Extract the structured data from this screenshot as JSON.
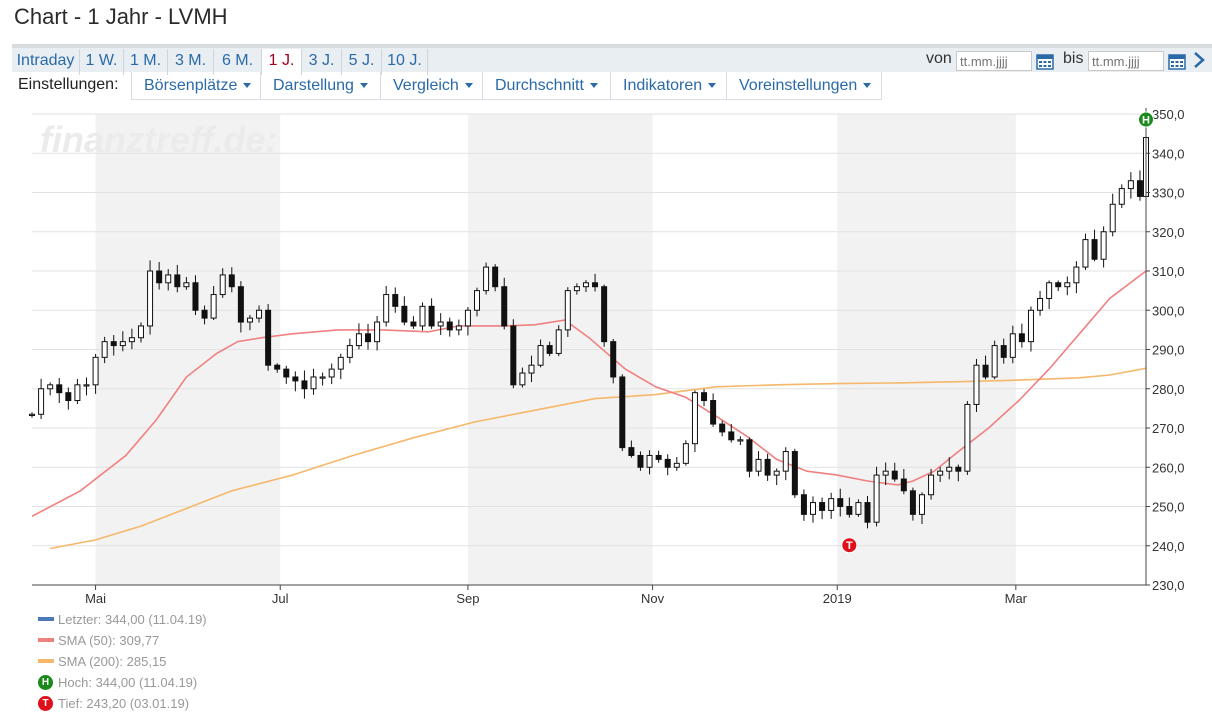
{
  "title": "Chart - 1 Jahr - LVMH",
  "range_tabs": [
    {
      "label": "Intraday",
      "active": false
    },
    {
      "label": "1 W.",
      "active": false
    },
    {
      "label": "1 M.",
      "active": false
    },
    {
      "label": "3 M.",
      "active": false
    },
    {
      "label": "6 M.",
      "active": false
    },
    {
      "label": "1 J.",
      "active": true
    },
    {
      "label": "3 J.",
      "active": false
    },
    {
      "label": "5 J.",
      "active": false
    },
    {
      "label": "10 J.",
      "active": false
    }
  ],
  "date_range": {
    "from_label": "von",
    "from_placeholder": "tt.mm.jjjj",
    "to_label": "bis",
    "to_placeholder": "tt.mm.jjjj"
  },
  "settings": {
    "label": "Einstellungen:",
    "menus": [
      "Börsenplätze",
      "Darstellung",
      "Vergleich",
      "Durchschnitt",
      "Indikatoren",
      "Voreinstellungen"
    ]
  },
  "watermark": "finanztreff.de:",
  "colors": {
    "accent": "#2a6aa8",
    "active_tab": "#a4001d",
    "sma50": "#f08080",
    "sma200": "#f5b86a",
    "last": "#4a7ab8",
    "high_badge": "#1a8a1a",
    "low_badge": "#e0101a"
  },
  "chart_data": {
    "type": "candlestick",
    "y_ticks": [
      "230,0",
      "240,0",
      "250,0",
      "260,0",
      "270,0",
      "280,0",
      "290,0",
      "300,0",
      "310,0",
      "320,0",
      "330,0",
      "340,0",
      "350,0"
    ],
    "ylim": [
      230,
      350
    ],
    "x_labels": [
      {
        "label": "Mai",
        "day": 15
      },
      {
        "label": "Jul",
        "day": 76
      },
      {
        "label": "Sep",
        "day": 138
      },
      {
        "label": "Nov",
        "day": 199
      },
      {
        "label": "2019",
        "day": 260
      },
      {
        "label": "Mar",
        "day": 319
      }
    ],
    "xlim": [
      -6,
      362
    ],
    "shaded_months": [
      [
        15,
        76
      ],
      [
        138,
        199
      ],
      [
        260,
        319
      ]
    ],
    "close_series": [
      [
        -6,
        273.5
      ],
      [
        -3,
        280
      ],
      [
        0,
        281
      ],
      [
        3,
        279
      ],
      [
        6,
        277
      ],
      [
        9,
        281
      ],
      [
        12,
        281
      ],
      [
        15,
        288
      ],
      [
        18,
        292
      ],
      [
        21,
        291
      ],
      [
        24,
        292
      ],
      [
        27,
        293
      ],
      [
        30,
        296
      ],
      [
        33,
        310
      ],
      [
        36,
        307
      ],
      [
        39,
        309
      ],
      [
        42,
        306
      ],
      [
        45,
        307
      ],
      [
        48,
        300
      ],
      [
        51,
        298
      ],
      [
        54,
        304
      ],
      [
        57,
        309
      ],
      [
        60,
        306
      ],
      [
        63,
        297
      ],
      [
        66,
        298
      ],
      [
        69,
        300
      ],
      [
        72,
        286
      ],
      [
        75,
        285
      ],
      [
        78,
        283
      ],
      [
        81,
        282
      ],
      [
        84,
        280
      ],
      [
        87,
        283
      ],
      [
        90,
        283
      ],
      [
        93,
        285
      ],
      [
        96,
        288
      ],
      [
        99,
        291
      ],
      [
        102,
        294
      ],
      [
        105,
        292
      ],
      [
        108,
        297
      ],
      [
        111,
        304
      ],
      [
        114,
        301
      ],
      [
        117,
        297
      ],
      [
        120,
        296
      ],
      [
        123,
        301
      ],
      [
        126,
        296
      ],
      [
        129,
        297
      ],
      [
        132,
        295
      ],
      [
        135,
        296
      ],
      [
        138,
        300
      ],
      [
        141,
        305
      ],
      [
        144,
        311
      ],
      [
        147,
        306
      ],
      [
        150,
        296
      ],
      [
        153,
        281
      ],
      [
        156,
        284
      ],
      [
        159,
        286
      ],
      [
        162,
        291
      ],
      [
        165,
        289
      ],
      [
        168,
        295
      ],
      [
        171,
        305
      ],
      [
        174,
        306
      ],
      [
        177,
        307
      ],
      [
        180,
        306
      ],
      [
        183,
        292
      ],
      [
        186,
        283
      ],
      [
        189,
        265
      ],
      [
        192,
        263
      ],
      [
        195,
        260
      ],
      [
        198,
        263
      ],
      [
        201,
        262
      ],
      [
        204,
        260
      ],
      [
        207,
        261
      ],
      [
        210,
        266
      ],
      [
        213,
        279
      ],
      [
        216,
        277
      ],
      [
        219,
        271
      ],
      [
        222,
        269
      ],
      [
        225,
        267
      ],
      [
        228,
        267
      ],
      [
        231,
        259
      ],
      [
        234,
        262
      ],
      [
        237,
        258
      ],
      [
        240,
        259
      ],
      [
        243,
        264
      ],
      [
        246,
        253
      ],
      [
        249,
        248
      ],
      [
        252,
        251
      ],
      [
        255,
        249
      ],
      [
        258,
        252
      ],
      [
        261,
        250
      ],
      [
        264,
        248
      ],
      [
        267,
        251
      ],
      [
        270,
        246
      ],
      [
        273,
        258
      ],
      [
        276,
        259
      ],
      [
        279,
        257
      ],
      [
        282,
        254
      ],
      [
        285,
        248
      ],
      [
        288,
        253
      ],
      [
        291,
        258
      ],
      [
        294,
        259
      ],
      [
        297,
        260
      ],
      [
        300,
        259
      ],
      [
        303,
        276
      ],
      [
        306,
        286
      ],
      [
        309,
        283
      ],
      [
        312,
        291
      ],
      [
        315,
        288
      ],
      [
        318,
        294
      ],
      [
        321,
        292
      ],
      [
        324,
        300
      ],
      [
        327,
        303
      ],
      [
        330,
        307
      ],
      [
        333,
        306
      ],
      [
        336,
        307
      ],
      [
        339,
        311
      ],
      [
        342,
        318
      ],
      [
        345,
        313
      ],
      [
        348,
        320
      ],
      [
        351,
        327
      ],
      [
        354,
        331
      ],
      [
        357,
        333
      ],
      [
        360,
        329
      ],
      [
        362,
        344
      ]
    ],
    "sma50": [
      [
        -6,
        247.5
      ],
      [
        10,
        254
      ],
      [
        25,
        263
      ],
      [
        35,
        272
      ],
      [
        45,
        283
      ],
      [
        55,
        289
      ],
      [
        62,
        292
      ],
      [
        70,
        293
      ],
      [
        80,
        294
      ],
      [
        95,
        295
      ],
      [
        110,
        295
      ],
      [
        125,
        294.5
      ],
      [
        135,
        296
      ],
      [
        150,
        296
      ],
      [
        160,
        296.3
      ],
      [
        170,
        297.5
      ],
      [
        178,
        293
      ],
      [
        190,
        285
      ],
      [
        200,
        280.5
      ],
      [
        210,
        277.8
      ],
      [
        220,
        273
      ],
      [
        230,
        268
      ],
      [
        240,
        262
      ],
      [
        250,
        259
      ],
      [
        260,
        258
      ],
      [
        270,
        256.5
      ],
      [
        280,
        255.5
      ],
      [
        285,
        256.5
      ],
      [
        292,
        259
      ],
      [
        300,
        264
      ],
      [
        310,
        270
      ],
      [
        320,
        277
      ],
      [
        330,
        285
      ],
      [
        340,
        294
      ],
      [
        350,
        303
      ],
      [
        362,
        310
      ]
    ],
    "sma200": [
      [
        0,
        239.3
      ],
      [
        15,
        241.5
      ],
      [
        30,
        245
      ],
      [
        45,
        249.5
      ],
      [
        60,
        254
      ],
      [
        80,
        258
      ],
      [
        100,
        263
      ],
      [
        120,
        267.5
      ],
      [
        140,
        271.5
      ],
      [
        160,
        274.5
      ],
      [
        180,
        277.5
      ],
      [
        200,
        278.5
      ],
      [
        220,
        280.5
      ],
      [
        240,
        281
      ],
      [
        260,
        281.3
      ],
      [
        280,
        281.5
      ],
      [
        300,
        281.8
      ],
      [
        320,
        282.2
      ],
      [
        340,
        282.8
      ],
      [
        350,
        283.5
      ],
      [
        362,
        285.2
      ]
    ],
    "high_marker": {
      "label": "H",
      "day": 362,
      "value": 344.0
    },
    "low_marker": {
      "label": "T",
      "day": 264,
      "value": 243.2
    },
    "legend": [
      {
        "key": "last",
        "text": "Letzter: 344,00 (11.04.19)"
      },
      {
        "key": "sma50",
        "text": "SMA (50): 309,77"
      },
      {
        "key": "sma200",
        "text": "SMA (200): 285,15"
      },
      {
        "key": "high",
        "badge": "H",
        "text": "Hoch: 344,00 (11.04.19)"
      },
      {
        "key": "low",
        "badge": "T",
        "text": "Tief: 243,20 (03.01.19)"
      }
    ]
  }
}
